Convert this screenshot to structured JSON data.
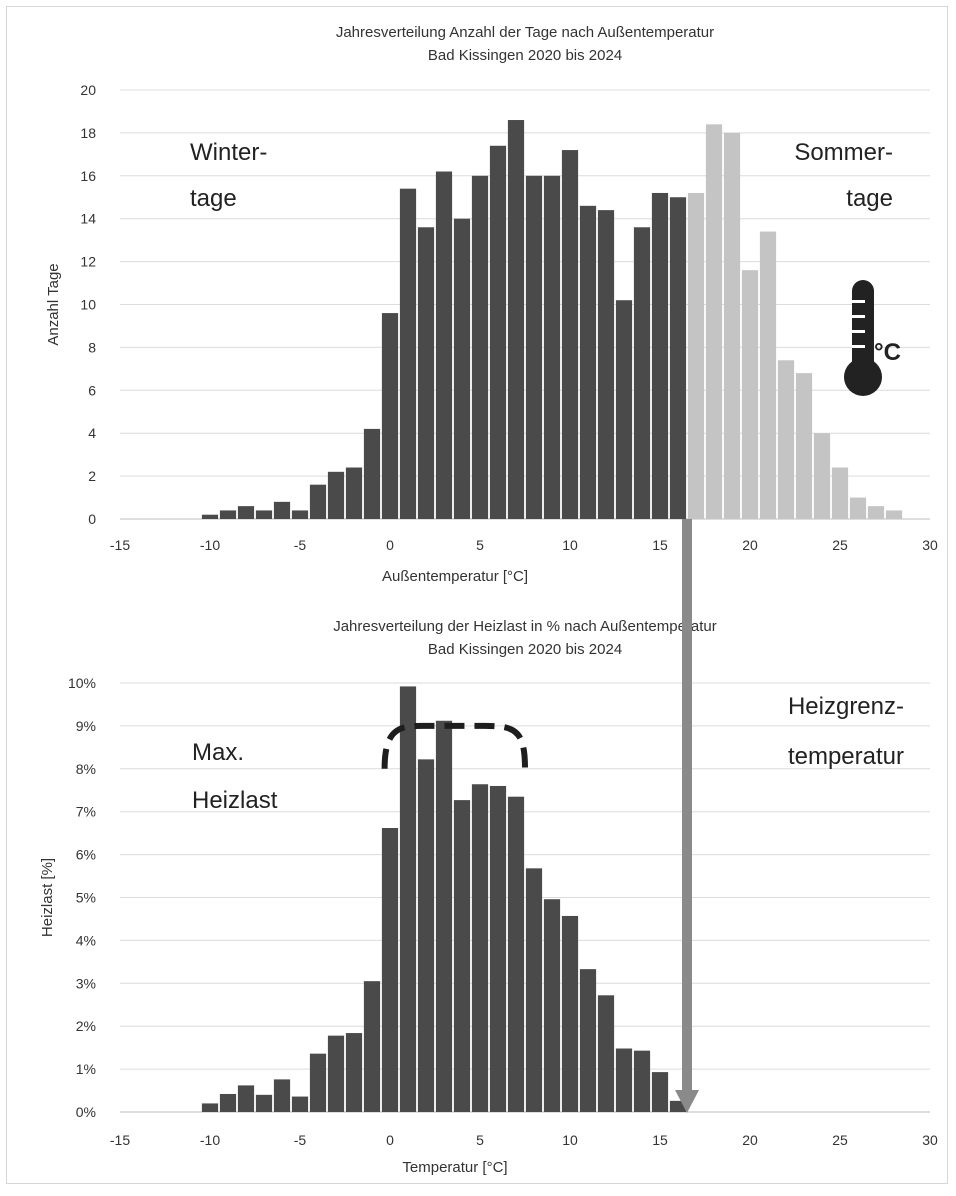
{
  "chart_data": [
    {
      "type": "bar",
      "title": "Jahresverteilung Anzahl der Tage nach Außentemperatur",
      "subtitle": "Bad Kissingen 2020 bis 2024",
      "xlabel": "Außentemperatur [°C]",
      "ylabel": "Anzahl Tage",
      "xlim": [
        -15,
        30
      ],
      "ylim": [
        0,
        20
      ],
      "xticks": [
        -15,
        -10,
        -5,
        0,
        5,
        10,
        15,
        20,
        25,
        30
      ],
      "xtick_labels": [
        "-15",
        "-10",
        "-5",
        "0",
        "5",
        "10",
        "15",
        "20",
        "25",
        "30"
      ],
      "yticks": [
        0,
        2,
        4,
        6,
        8,
        10,
        12,
        14,
        16,
        18,
        20
      ],
      "ytick_labels": [
        "0",
        "2",
        "4",
        "6",
        "8",
        "10",
        "12",
        "14",
        "16",
        "18",
        "20"
      ],
      "grid": true,
      "x": [
        -10,
        -9,
        -8,
        -7,
        -6,
        -5,
        -4,
        -3,
        -2,
        -1,
        0,
        1,
        2,
        3,
        4,
        5,
        6,
        7,
        8,
        9,
        10,
        11,
        12,
        13,
        14,
        15,
        16,
        17,
        18,
        19,
        20,
        21,
        22,
        23,
        24,
        25,
        26,
        27,
        28
      ],
      "values": [
        0.2,
        0.4,
        0.6,
        0.4,
        0.8,
        0.4,
        1.6,
        2.2,
        2.4,
        4.2,
        9.6,
        15.4,
        13.6,
        16.2,
        14.0,
        16.0,
        17.4,
        18.6,
        16.0,
        16.0,
        17.2,
        14.6,
        14.4,
        10.2,
        13.6,
        15.2,
        15.0,
        15.2,
        18.4,
        18.0,
        11.6,
        13.4,
        7.4,
        6.8,
        4.0,
        2.4,
        1.0,
        0.6,
        0.4
      ],
      "winter_color": "#4a4a4a",
      "summer_color": "#c4c4c4",
      "split_at": 16.5,
      "annotations": {
        "winter_line1": "Winter-",
        "winter_line2": "tage",
        "summer_line1": "Sommer-",
        "summer_line2": "tage",
        "thermo_unit": "°C"
      },
      "icon": "thermometer-icon"
    },
    {
      "type": "bar",
      "title": "Jahresverteilung der Heizlast in % nach Außentemperatur",
      "subtitle": "Bad Kissingen 2020 bis 2024",
      "xlabel": "Temperatur [°C]",
      "ylabel": "Heizlast [%]",
      "xlim": [
        -15,
        30
      ],
      "ylim": [
        0,
        10
      ],
      "xticks": [
        -15,
        -10,
        -5,
        0,
        5,
        10,
        15,
        20,
        25,
        30
      ],
      "xtick_labels": [
        "-15",
        "-10",
        "-5",
        "0",
        "5",
        "10",
        "15",
        "20",
        "25",
        "30"
      ],
      "yticks": [
        0,
        1,
        2,
        3,
        4,
        5,
        6,
        7,
        8,
        9,
        10
      ],
      "ytick_labels": [
        "0%",
        "1%",
        "2%",
        "3%",
        "4%",
        "5%",
        "6%",
        "7%",
        "8%",
        "9%",
        "10%"
      ],
      "grid": true,
      "x": [
        -10,
        -9,
        -8,
        -7,
        -6,
        -5,
        -4,
        -3,
        -2,
        -1,
        0,
        1,
        2,
        3,
        4,
        5,
        6,
        7,
        8,
        9,
        10,
        11,
        12,
        13,
        14,
        15,
        16
      ],
      "values": [
        0.2,
        0.42,
        0.62,
        0.4,
        0.76,
        0.36,
        1.36,
        1.78,
        1.84,
        3.05,
        6.62,
        9.92,
        8.22,
        9.12,
        7.27,
        7.64,
        7.6,
        7.35,
        5.68,
        4.96,
        4.57,
        3.33,
        2.72,
        1.48,
        1.43,
        0.93,
        0.26
      ],
      "bar_color": "#4a4a4a",
      "dashed_arc": {
        "x_from": -0.3,
        "x_to": 7.5,
        "y_base": 8.0,
        "y_top": 9.0
      },
      "annotations": {
        "max_line1": "Max.",
        "max_line2": "Heizlast",
        "limit_line1": "Heizgrenz-",
        "limit_line2": "temperatur"
      }
    }
  ],
  "arrow": {
    "x_temperature": 16.5,
    "color": "#8a8a8a"
  }
}
